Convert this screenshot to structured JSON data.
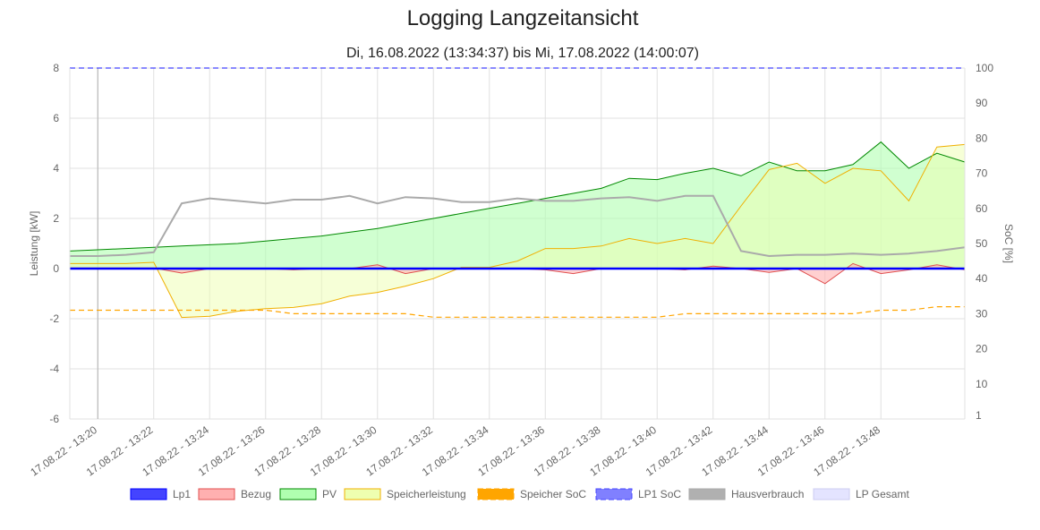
{
  "chart_data": {
    "type": "line",
    "title": "Logging Langzeitansicht",
    "subtitle": "Di, 16.08.2022 (13:34:37) bis Mi, 17.08.2022 (14:00:07)",
    "y_left": {
      "label": "Leistung [kW]",
      "range": [
        -6,
        8
      ],
      "ticks": [
        -6,
        -4,
        -2,
        0,
        2,
        4,
        6,
        8
      ]
    },
    "y_right": {
      "label": "SoC [%]",
      "range": [
        0,
        100
      ],
      "ticks": [
        1,
        10,
        20,
        30,
        40,
        50,
        60,
        70,
        80,
        90,
        100
      ]
    },
    "x_ticks": [
      "17.08.22 - 13:20",
      "17.08.22 - 13:22",
      "17.08.22 - 13:24",
      "17.08.22 - 13:26",
      "17.08.22 - 13:28",
      "17.08.22 - 13:30",
      "17.08.22 - 13:32",
      "17.08.22 - 13:34",
      "17.08.22 - 13:36",
      "17.08.22 - 13:38",
      "17.08.22 - 13:40",
      "17.08.22 - 13:42",
      "17.08.22 - 13:44",
      "17.08.22 - 13:46",
      "17.08.22 - 13:48"
    ],
    "x_minutes": [
      -1,
      0,
      1,
      2,
      3,
      4,
      5,
      6,
      7,
      8,
      9,
      10,
      11,
      12,
      13,
      14,
      15,
      16,
      17,
      18,
      19,
      20,
      21,
      22,
      23,
      24,
      25,
      26,
      27,
      28,
      29,
      30,
      31
    ],
    "x_range": [
      -1,
      31
    ],
    "series": [
      {
        "name": "Lp1",
        "axis": "left",
        "style": "line",
        "color": "#0000ff",
        "fill": "#4444ff",
        "values": [
          0,
          0,
          0,
          0,
          0,
          0,
          0,
          0,
          0,
          0,
          0,
          0,
          0,
          0,
          0,
          0,
          0,
          0,
          0,
          0,
          0,
          0,
          0,
          0,
          0,
          0,
          0,
          0,
          0,
          0,
          0,
          0,
          0
        ]
      },
      {
        "name": "Bezug",
        "axis": "left",
        "style": "area",
        "color": "#e05050",
        "fill": "#ffb0b0",
        "values": [
          0.02,
          0.02,
          0.02,
          0.02,
          -0.18,
          0,
          0,
          0,
          -0.05,
          0,
          0,
          0.15,
          -0.2,
          0,
          0,
          0,
          0,
          -0.05,
          -0.2,
          0,
          0,
          0,
          -0.05,
          0.1,
          0,
          -0.15,
          0,
          -0.6,
          0.2,
          -0.2,
          -0.05,
          0.15,
          -0.05
        ]
      },
      {
        "name": "PV",
        "axis": "left",
        "style": "area",
        "color": "#008800",
        "fill": "#b0ffb0",
        "values": [
          0.7,
          0.75,
          0.8,
          0.85,
          0.9,
          0.95,
          1.0,
          1.1,
          1.2,
          1.3,
          1.45,
          1.6,
          1.8,
          2.0,
          2.2,
          2.4,
          2.6,
          2.8,
          3.0,
          3.2,
          3.6,
          3.55,
          3.8,
          4.0,
          3.7,
          4.25,
          3.9,
          3.9,
          4.15,
          5.05,
          4.0,
          4.6,
          4.25
        ]
      },
      {
        "name": "Speicherleistung",
        "axis": "left",
        "style": "area",
        "color": "#f0b000",
        "fill": "#eeffb0",
        "values": [
          0.2,
          0.2,
          0.2,
          0.25,
          -1.95,
          -1.9,
          -1.7,
          -1.6,
          -1.55,
          -1.4,
          -1.1,
          -0.95,
          -0.7,
          -0.4,
          0.05,
          0.05,
          0.3,
          0.8,
          0.8,
          0.9,
          1.2,
          1.0,
          1.2,
          1.0,
          2.5,
          3.95,
          4.2,
          3.4,
          4.0,
          3.9,
          2.7,
          4.85,
          4.95
        ]
      },
      {
        "name": "Speicher SoC",
        "axis": "right",
        "style": "dashed",
        "color": "#ffa500",
        "fill": "#ffa500",
        "values": [
          31,
          31,
          31,
          31,
          31,
          31,
          31,
          31,
          30,
          30,
          30,
          30,
          30,
          29,
          29,
          29,
          29,
          29,
          29,
          29,
          29,
          29,
          30,
          30,
          30,
          30,
          30,
          30,
          30,
          31,
          31,
          32,
          32
        ]
      },
      {
        "name": "LP1 SoC",
        "axis": "right",
        "style": "dashed",
        "color": "#4444ff",
        "fill": "#8080ff",
        "values": [
          100,
          100,
          100,
          100,
          100,
          100,
          100,
          100,
          100,
          100,
          100,
          100,
          100,
          100,
          100,
          100,
          100,
          100,
          100,
          100,
          100,
          100,
          100,
          100,
          100,
          100,
          100,
          100,
          100,
          100,
          100,
          100,
          100
        ]
      },
      {
        "name": "Hausverbrauch",
        "axis": "left",
        "style": "line",
        "color": "#aaaaaa",
        "fill": "#b0b0b0",
        "values": [
          0.5,
          0.5,
          0.55,
          0.65,
          2.6,
          2.8,
          2.7,
          2.6,
          2.75,
          2.75,
          2.9,
          2.6,
          2.85,
          2.8,
          2.65,
          2.65,
          2.8,
          2.7,
          2.7,
          2.8,
          2.85,
          2.7,
          2.9,
          2.9,
          0.7,
          0.5,
          0.55,
          0.55,
          0.6,
          0.55,
          0.6,
          0.7,
          0.85
        ]
      },
      {
        "name": "LP Gesamt",
        "axis": "left",
        "style": "legend-only",
        "color": "#ccccf0",
        "fill": "#e4e4ff",
        "values": []
      }
    ],
    "legend_position": "bottom"
  }
}
